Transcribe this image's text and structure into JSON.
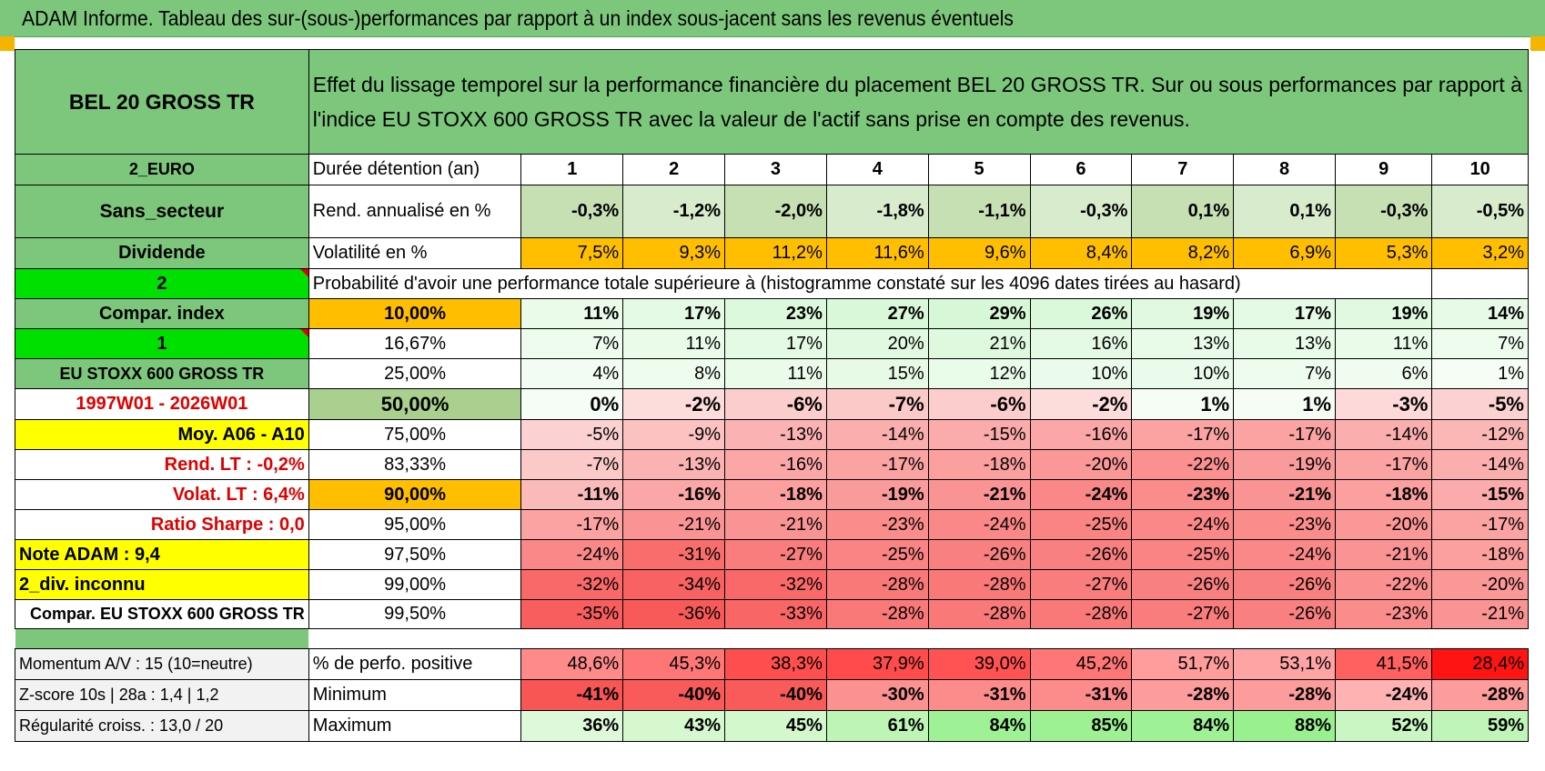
{
  "title": "ADAM Informe. Tableau des sur-(sous-)performances par rapport à un index sous-jacent sans les revenus éventuels",
  "left": {
    "name": "BEL 20 GROSS TR",
    "currency": "2_EURO",
    "sector": "Sans_secteur",
    "dividend": "Dividende",
    "num_two": "2",
    "compar_index": "Compar. index",
    "num_one": "1",
    "index_name": "EU STOXX 600 GROSS TR",
    "period": "1997W01 - 2026W01",
    "moy": "Moy. A06 - A10",
    "rend_lt": "Rend. LT :    -0,2%",
    "volat_lt": "Volat. LT :    6,4%",
    "sharpe": "Ratio Sharpe :     0,0",
    "note": "Note ADAM : 9,4",
    "div": "2_div. inconnu",
    "compar": "Compar. EU STOXX 600 GROSS TR",
    "momentum": "Momentum A/V : 15 (10=neutre)",
    "zscore": "Z-score 10s | 28a : 1,4 | 1,2",
    "regularite": "Régularité croiss. : 13,0 / 20"
  },
  "header_text": "Effet du lissage temporel sur la performance financière du placement BEL 20 GROSS TR. Sur ou sous performances par rapport à l'indice EU STOXX 600 GROSS TR avec la valeur de l'actif sans prise en compte des revenus.",
  "duree_label": "Durée détention (an)",
  "years": [
    "1",
    "2",
    "3",
    "4",
    "5",
    "6",
    "7",
    "8",
    "9",
    "10"
  ],
  "rend_label": "Rend. annualisé en %",
  "rend": [
    "-0,3%",
    "-1,2%",
    "-2,0%",
    "-1,8%",
    "-1,1%",
    "-0,3%",
    "0,1%",
    "0,1%",
    "-0,3%",
    "-0,5%"
  ],
  "vol_label": "Volatilité en %",
  "vol": [
    "7,5%",
    "9,3%",
    "11,2%",
    "11,6%",
    "9,6%",
    "8,4%",
    "8,2%",
    "6,9%",
    "5,3%",
    "3,2%"
  ],
  "prob_label": "Probabilité d'avoir une performance totale supérieure à (histogramme constaté sur les 4096 dates tirées au hasard)",
  "rows": [
    {
      "p": "10,00%",
      "v": [
        "11%",
        "17%",
        "23%",
        "27%",
        "29%",
        "26%",
        "19%",
        "17%",
        "19%",
        "14%"
      ]
    },
    {
      "p": "16,67%",
      "v": [
        "7%",
        "11%",
        "17%",
        "20%",
        "21%",
        "16%",
        "13%",
        "13%",
        "11%",
        "7%"
      ]
    },
    {
      "p": "25,00%",
      "v": [
        "4%",
        "8%",
        "11%",
        "15%",
        "12%",
        "10%",
        "10%",
        "7%",
        "6%",
        "1%"
      ]
    },
    {
      "p": "50,00%",
      "v": [
        "0%",
        "-2%",
        "-6%",
        "-7%",
        "-6%",
        "-2%",
        "1%",
        "1%",
        "-3%",
        "-5%"
      ]
    },
    {
      "p": "75,00%",
      "v": [
        "-5%",
        "-9%",
        "-13%",
        "-14%",
        "-15%",
        "-16%",
        "-17%",
        "-17%",
        "-14%",
        "-12%"
      ]
    },
    {
      "p": "83,33%",
      "v": [
        "-7%",
        "-13%",
        "-16%",
        "-17%",
        "-18%",
        "-20%",
        "-22%",
        "-19%",
        "-17%",
        "-14%"
      ]
    },
    {
      "p": "90,00%",
      "v": [
        "-11%",
        "-16%",
        "-18%",
        "-19%",
        "-21%",
        "-24%",
        "-23%",
        "-21%",
        "-18%",
        "-15%"
      ]
    },
    {
      "p": "95,00%",
      "v": [
        "-17%",
        "-21%",
        "-21%",
        "-23%",
        "-24%",
        "-25%",
        "-24%",
        "-23%",
        "-20%",
        "-17%"
      ]
    },
    {
      "p": "97,50%",
      "v": [
        "-24%",
        "-31%",
        "-27%",
        "-25%",
        "-26%",
        "-26%",
        "-25%",
        "-24%",
        "-21%",
        "-18%"
      ]
    },
    {
      "p": "99,00%",
      "v": [
        "-32%",
        "-34%",
        "-32%",
        "-28%",
        "-28%",
        "-27%",
        "-26%",
        "-26%",
        "-22%",
        "-20%"
      ]
    },
    {
      "p": "99,50%",
      "v": [
        "-35%",
        "-36%",
        "-33%",
        "-28%",
        "-28%",
        "-28%",
        "-27%",
        "-26%",
        "-23%",
        "-21%"
      ]
    }
  ],
  "pos_label": "% de perfo. positive",
  "pos": [
    "48,6%",
    "45,3%",
    "38,3%",
    "37,9%",
    "39,0%",
    "45,2%",
    "51,7%",
    "53,1%",
    "41,5%",
    "28,4%"
  ],
  "min_label": "Minimum",
  "min": [
    "-41%",
    "-40%",
    "-40%",
    "-30%",
    "-31%",
    "-31%",
    "-28%",
    "-28%",
    "-24%",
    "-28%"
  ],
  "max_label": "Maximum",
  "max": [
    "36%",
    "43%",
    "45%",
    "61%",
    "84%",
    "85%",
    "84%",
    "88%",
    "52%",
    "59%"
  ]
}
